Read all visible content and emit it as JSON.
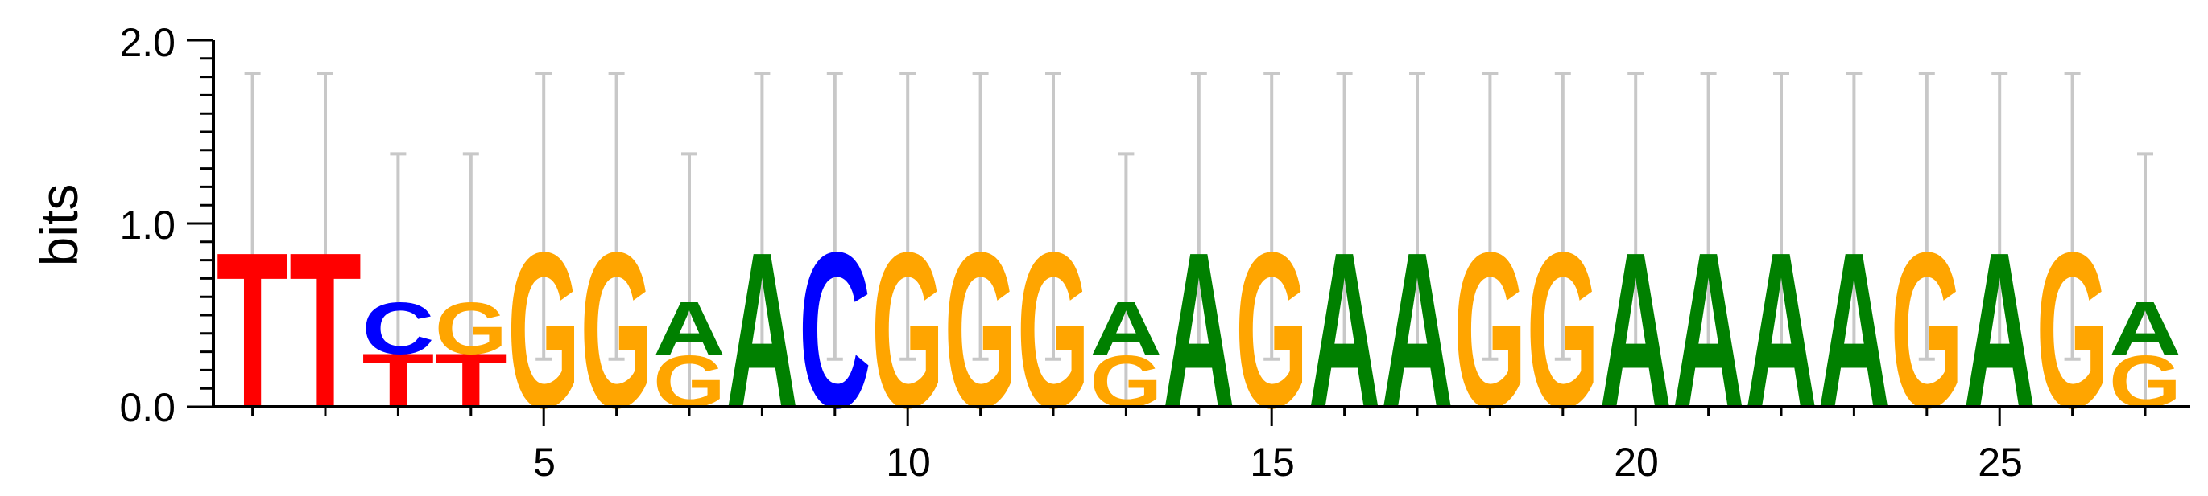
{
  "colors": {
    "A": "#008000",
    "C": "#0000FF",
    "G": "#FFA500",
    "T": "#FF0000",
    "error_bar": "#C8C8C8",
    "axis": "#000000"
  },
  "chart_data": {
    "type": "sequence_logo",
    "ylabel": "bits",
    "ylim": [
      0,
      2
    ],
    "y_ticks": [
      "0.0",
      "1.0",
      "2.0"
    ],
    "x_ticks": [
      "5",
      "10",
      "15",
      "20",
      "25"
    ],
    "positions": [
      {
        "pos": 1,
        "stack": [
          {
            "letter": "T",
            "bits": 0.84
          }
        ],
        "err": [
          0.26,
          1.82
        ]
      },
      {
        "pos": 2,
        "stack": [
          {
            "letter": "T",
            "bits": 0.84
          }
        ],
        "err": [
          0.26,
          1.82
        ]
      },
      {
        "pos": 3,
        "stack": [
          {
            "letter": "T",
            "bits": 0.29
          },
          {
            "letter": "C",
            "bits": 0.28
          }
        ],
        "err": [
          0.0,
          1.38
        ]
      },
      {
        "pos": 4,
        "stack": [
          {
            "letter": "T",
            "bits": 0.29
          },
          {
            "letter": "G",
            "bits": 0.28
          }
        ],
        "err": [
          0.0,
          1.38
        ]
      },
      {
        "pos": 5,
        "stack": [
          {
            "letter": "G",
            "bits": 0.84
          }
        ],
        "err": [
          0.26,
          1.82
        ]
      },
      {
        "pos": 6,
        "stack": [
          {
            "letter": "G",
            "bits": 0.84
          }
        ],
        "err": [
          0.26,
          1.82
        ]
      },
      {
        "pos": 7,
        "stack": [
          {
            "letter": "G",
            "bits": 0.28
          },
          {
            "letter": "A",
            "bits": 0.29
          }
        ],
        "err": [
          0.0,
          1.38
        ]
      },
      {
        "pos": 8,
        "stack": [
          {
            "letter": "A",
            "bits": 0.84
          }
        ],
        "err": [
          0.26,
          1.82
        ]
      },
      {
        "pos": 9,
        "stack": [
          {
            "letter": "C",
            "bits": 0.84
          }
        ],
        "err": [
          0.26,
          1.82
        ]
      },
      {
        "pos": 10,
        "stack": [
          {
            "letter": "G",
            "bits": 0.84
          }
        ],
        "err": [
          0.26,
          1.82
        ]
      },
      {
        "pos": 11,
        "stack": [
          {
            "letter": "G",
            "bits": 0.84
          }
        ],
        "err": [
          0.26,
          1.82
        ]
      },
      {
        "pos": 12,
        "stack": [
          {
            "letter": "G",
            "bits": 0.84
          }
        ],
        "err": [
          0.26,
          1.82
        ]
      },
      {
        "pos": 13,
        "stack": [
          {
            "letter": "G",
            "bits": 0.28
          },
          {
            "letter": "A",
            "bits": 0.29
          }
        ],
        "err": [
          0.0,
          1.38
        ]
      },
      {
        "pos": 14,
        "stack": [
          {
            "letter": "A",
            "bits": 0.84
          }
        ],
        "err": [
          0.26,
          1.82
        ]
      },
      {
        "pos": 15,
        "stack": [
          {
            "letter": "G",
            "bits": 0.84
          }
        ],
        "err": [
          0.26,
          1.82
        ]
      },
      {
        "pos": 16,
        "stack": [
          {
            "letter": "A",
            "bits": 0.84
          }
        ],
        "err": [
          0.26,
          1.82
        ]
      },
      {
        "pos": 17,
        "stack": [
          {
            "letter": "A",
            "bits": 0.84
          }
        ],
        "err": [
          0.26,
          1.82
        ]
      },
      {
        "pos": 18,
        "stack": [
          {
            "letter": "G",
            "bits": 0.84
          }
        ],
        "err": [
          0.26,
          1.82
        ]
      },
      {
        "pos": 19,
        "stack": [
          {
            "letter": "G",
            "bits": 0.84
          }
        ],
        "err": [
          0.26,
          1.82
        ]
      },
      {
        "pos": 20,
        "stack": [
          {
            "letter": "A",
            "bits": 0.84
          }
        ],
        "err": [
          0.26,
          1.82
        ]
      },
      {
        "pos": 21,
        "stack": [
          {
            "letter": "A",
            "bits": 0.84
          }
        ],
        "err": [
          0.26,
          1.82
        ]
      },
      {
        "pos": 22,
        "stack": [
          {
            "letter": "A",
            "bits": 0.84
          }
        ],
        "err": [
          0.26,
          1.82
        ]
      },
      {
        "pos": 23,
        "stack": [
          {
            "letter": "A",
            "bits": 0.84
          }
        ],
        "err": [
          0.26,
          1.82
        ]
      },
      {
        "pos": 24,
        "stack": [
          {
            "letter": "G",
            "bits": 0.84
          }
        ],
        "err": [
          0.26,
          1.82
        ]
      },
      {
        "pos": 25,
        "stack": [
          {
            "letter": "A",
            "bits": 0.84
          }
        ],
        "err": [
          0.26,
          1.82
        ]
      },
      {
        "pos": 26,
        "stack": [
          {
            "letter": "G",
            "bits": 0.84
          }
        ],
        "err": [
          0.26,
          1.82
        ]
      },
      {
        "pos": 27,
        "stack": [
          {
            "letter": "G",
            "bits": 0.28
          },
          {
            "letter": "A",
            "bits": 0.29
          }
        ],
        "err": [
          0.0,
          1.38
        ]
      }
    ]
  }
}
